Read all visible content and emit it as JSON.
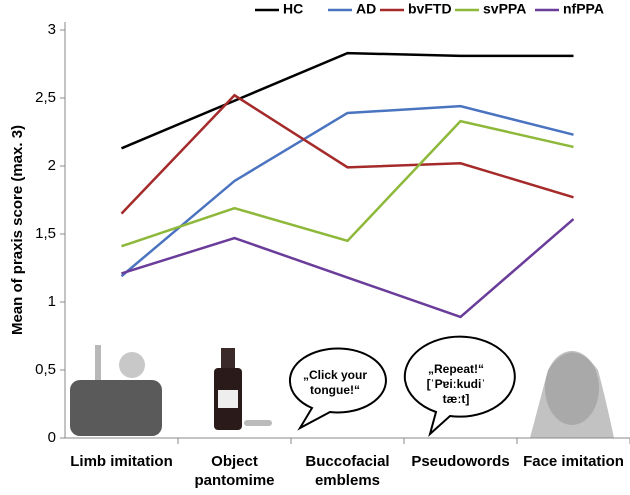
{
  "chart_data": {
    "type": "line",
    "y_label": "Mean of praxis score (max. 3)",
    "categories": [
      "Limb imitation",
      "Object pantomime",
      "Buccofacial emblems",
      "Pseudowords",
      "Face imitation"
    ],
    "series": [
      {
        "name": "HC",
        "color": "#000000",
        "values": [
          2.13,
          2.48,
          2.83,
          2.81,
          2.81
        ]
      },
      {
        "name": "AD",
        "color": "#4a73c0",
        "values": [
          1.19,
          1.89,
          2.39,
          2.44,
          2.23
        ]
      },
      {
        "name": "bvFTD",
        "color": "#a52a2a",
        "values": [
          1.65,
          2.52,
          1.99,
          2.02,
          1.77
        ]
      },
      {
        "name": "svPPA",
        "color": "#8db83a",
        "values": [
          1.41,
          1.69,
          1.45,
          2.33,
          2.14
        ]
      },
      {
        "name": "nfPPA",
        "color": "#6a3d9a",
        "values": [
          1.21,
          1.47,
          1.18,
          0.89,
          1.61
        ]
      }
    ],
    "ylim": [
      0,
      3
    ],
    "yticks": [
      0,
      {
        "value": 0.5,
        "label": "0,5"
      },
      1,
      {
        "value": 1.5,
        "label": "1,5"
      },
      2,
      {
        "value": 2.5,
        "label": "2,5"
      },
      3
    ],
    "annotations": [
      "„Click your tongue!“",
      "„Repeat!“ [ˈPɐiːkudiˈ tæːt]"
    ]
  }
}
